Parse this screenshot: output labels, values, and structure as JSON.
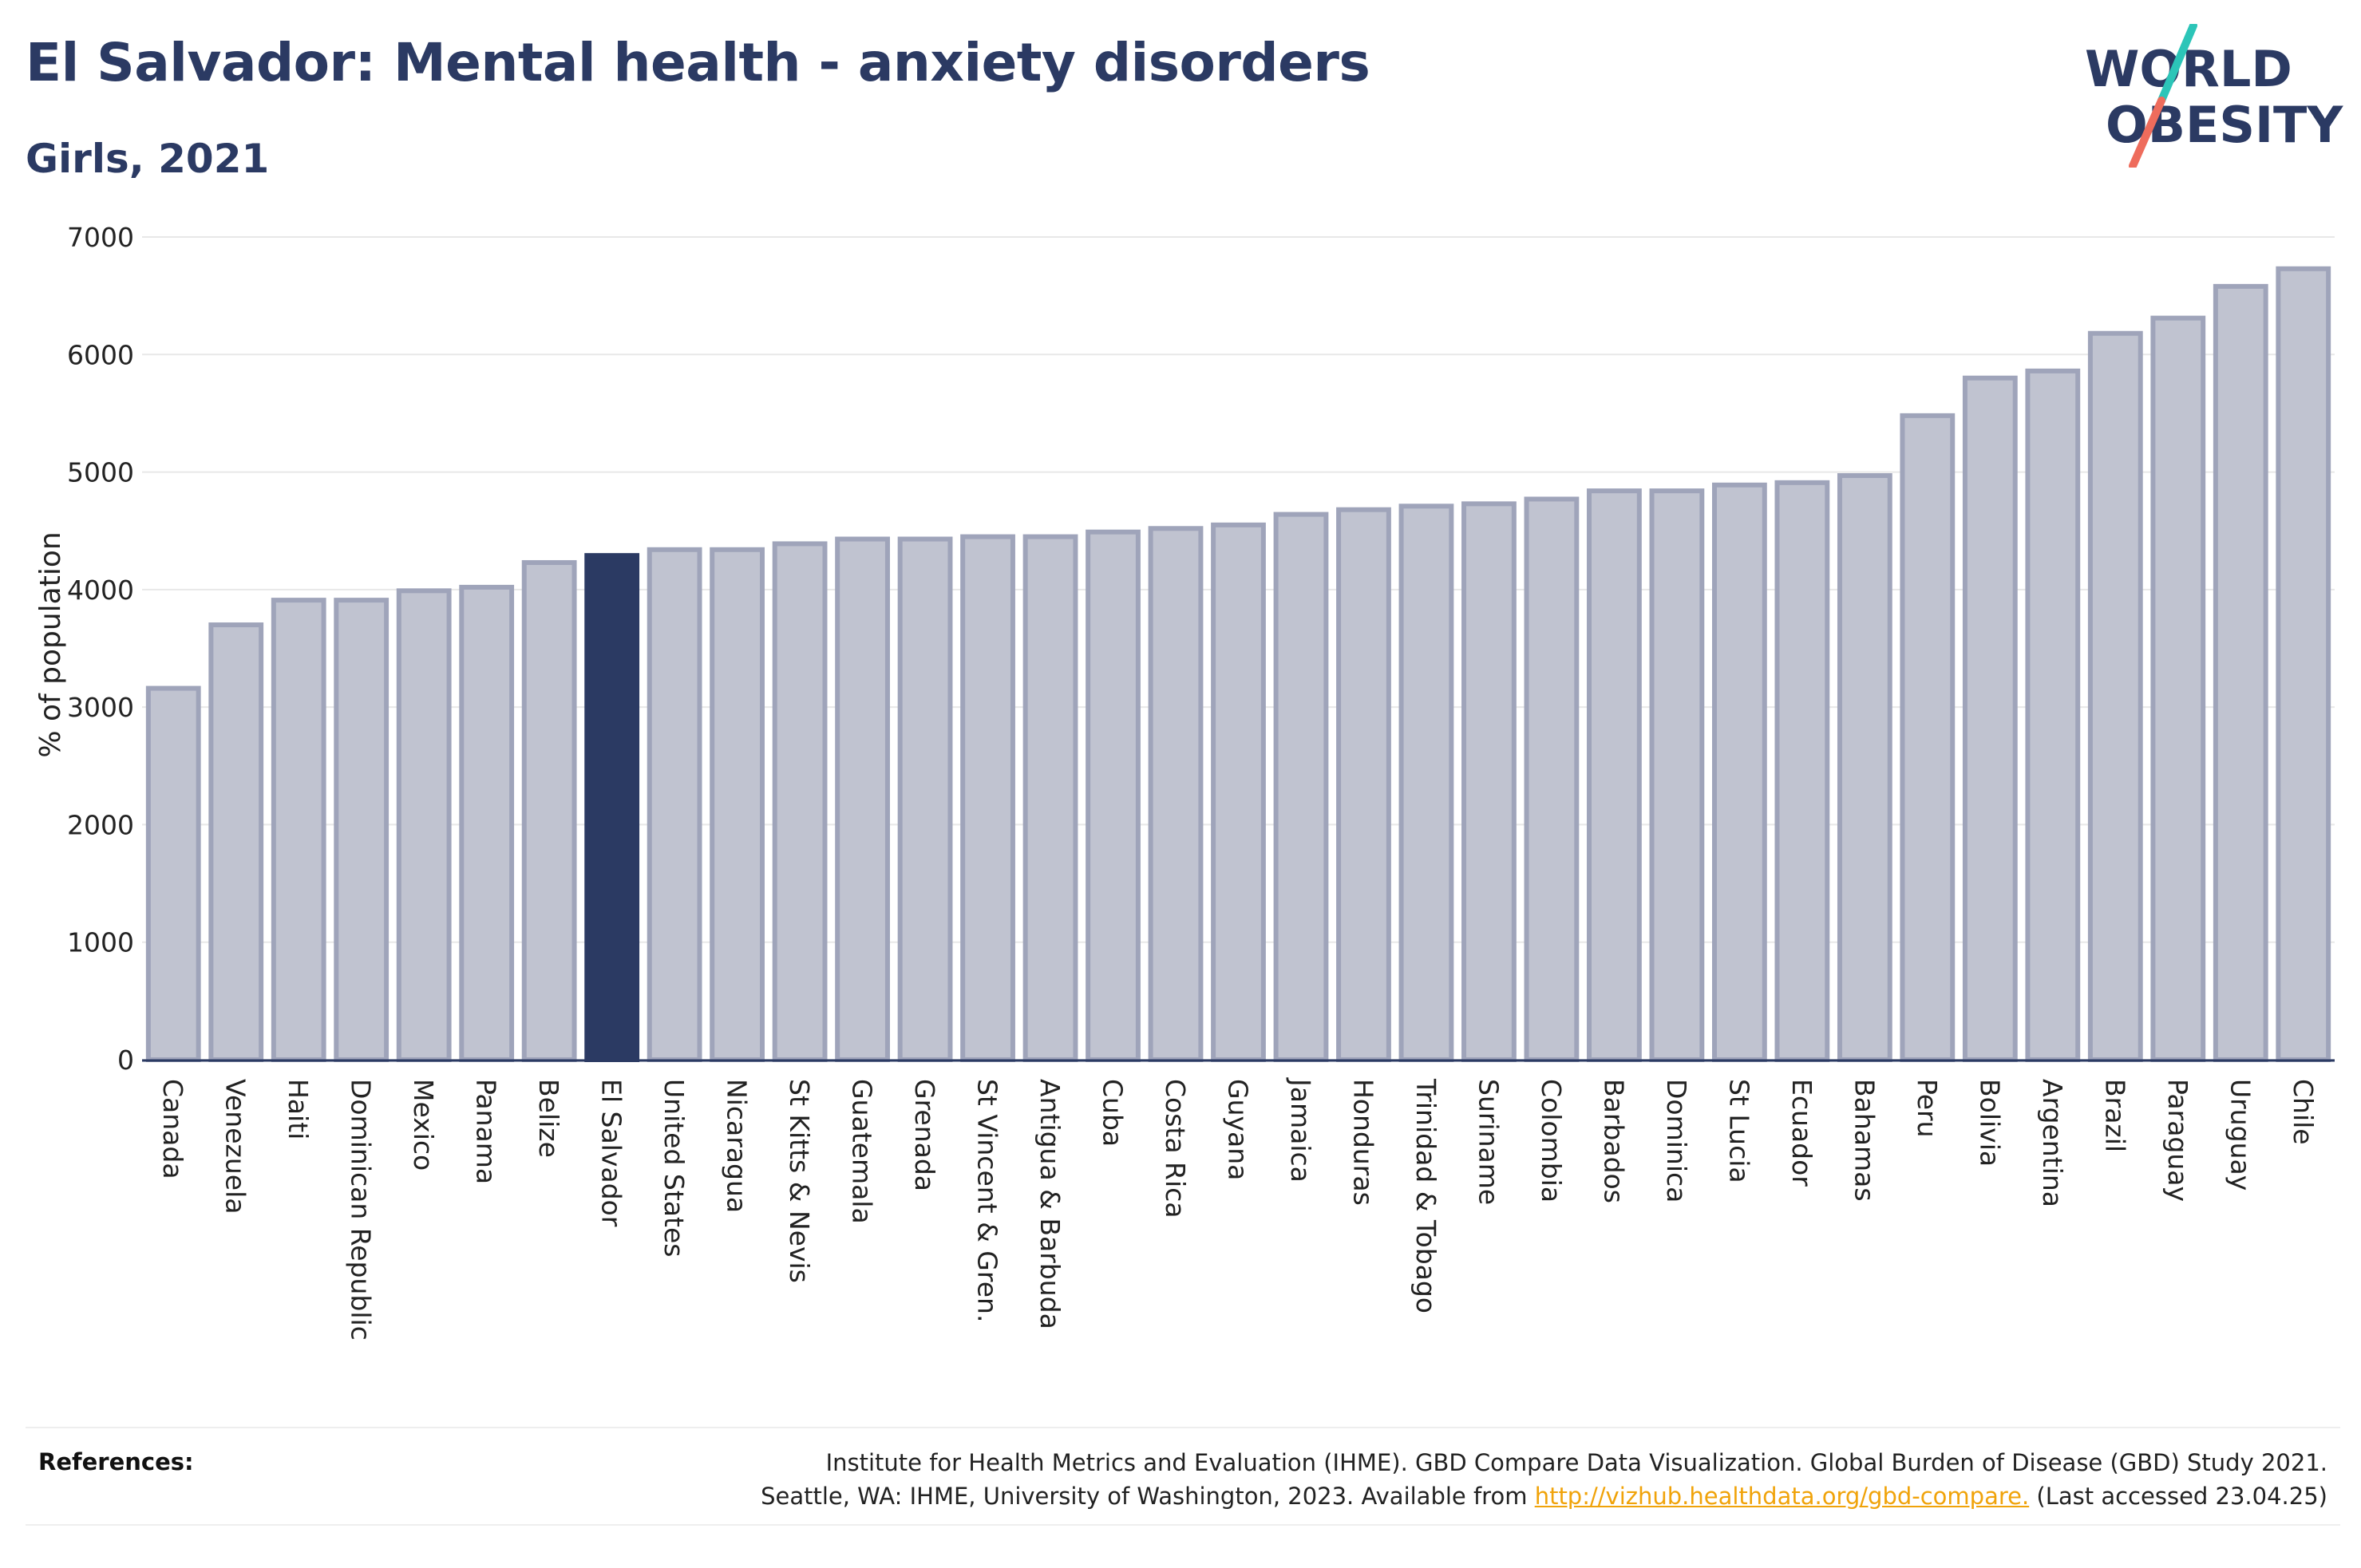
{
  "header": {
    "title": "El Salvador: Mental health - anxiety disorders",
    "subtitle": "Girls, 2021"
  },
  "logo": {
    "line1": "WORLD",
    "line2": "OBESITY",
    "colors": {
      "text": "#2b3a63",
      "slash_top": "#2cc5b8",
      "slash_bottom": "#ee6c5c"
    }
  },
  "colors": {
    "highlight": "#2b3a63",
    "bar_fill": "#c0c3d0",
    "bar_stroke": "#9fa4ba",
    "grid": "#e8e8e8",
    "axis": "#2b3a63"
  },
  "chart_data": {
    "type": "bar",
    "ylabel": "% of population",
    "ylim": [
      0,
      7000
    ],
    "yticks": [
      0,
      1000,
      2000,
      3000,
      4000,
      5000,
      6000,
      7000
    ],
    "grid": true,
    "highlight": "El Salvador",
    "categories": [
      "Canada",
      "Venezuela",
      "Haiti",
      "Dominican Republic",
      "Mexico",
      "Panama",
      "Belize",
      "El Salvador",
      "United States",
      "Nicaragua",
      "St Kitts & Nevis",
      "Guatemala",
      "Grenada",
      "St Vincent & Gren.",
      "Antigua & Barbuda",
      "Cuba",
      "Costa Rica",
      "Guyana",
      "Jamaica",
      "Honduras",
      "Trinidad & Tobago",
      "Suriname",
      "Colombia",
      "Barbados",
      "Dominica",
      "St Lucia",
      "Ecuador",
      "Bahamas",
      "Peru",
      "Bolivia",
      "Argentina",
      "Brazil",
      "Paraguay",
      "Uruguay",
      "Chile"
    ],
    "values": [
      3160,
      3700,
      3910,
      3910,
      3990,
      4020,
      4230,
      4290,
      4340,
      4340,
      4390,
      4430,
      4430,
      4450,
      4450,
      4490,
      4520,
      4550,
      4640,
      4680,
      4710,
      4730,
      4770,
      4840,
      4840,
      4890,
      4910,
      4970,
      5480,
      5800,
      5860,
      6180,
      6310,
      6580,
      6730
    ]
  },
  "references": {
    "label": "References:",
    "line1": "Institute for Health Metrics and Evaluation (IHME). GBD Compare Data Visualization. Global Burden of Disease (GBD) Study 2021.",
    "line2_prefix": "Seattle, WA: IHME, University of Washington, 2023. Available from ",
    "link": "http://vizhub.healthdata.org/gbd-compare.",
    "line2_suffix": " (Last accessed 23.04.25)"
  }
}
